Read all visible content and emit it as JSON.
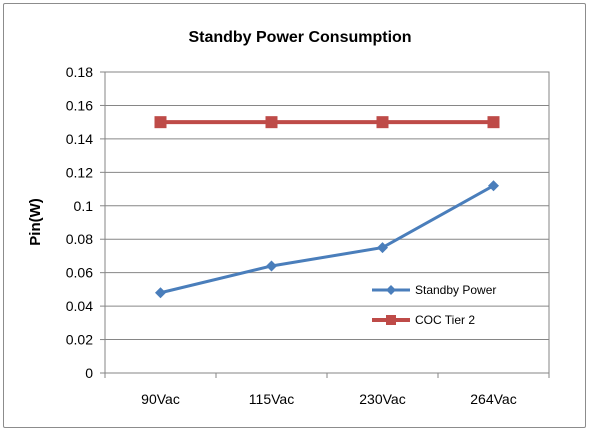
{
  "chart_data": {
    "type": "line",
    "title": "Standby Power Consumption",
    "xlabel": "",
    "ylabel": "Pin(W)",
    "categories": [
      "90Vac",
      "115Vac",
      "230Vac",
      "264Vac"
    ],
    "ylim": [
      0,
      0.18
    ],
    "yticks": [
      "0",
      "0.02",
      "0.04",
      "0.06",
      "0.08",
      "0.1",
      "0.12",
      "0.14",
      "0.16",
      "0.18"
    ],
    "grid": true,
    "legend_position": "bottom-right",
    "series": [
      {
        "name": "Standby Power",
        "values": [
          0.048,
          0.064,
          0.075,
          0.112
        ],
        "color": "#4a7ebb",
        "marker": "diamond"
      },
      {
        "name": "COC Tier 2",
        "values": [
          0.15,
          0.15,
          0.15,
          0.15
        ],
        "color": "#be4b48",
        "marker": "square"
      }
    ]
  }
}
